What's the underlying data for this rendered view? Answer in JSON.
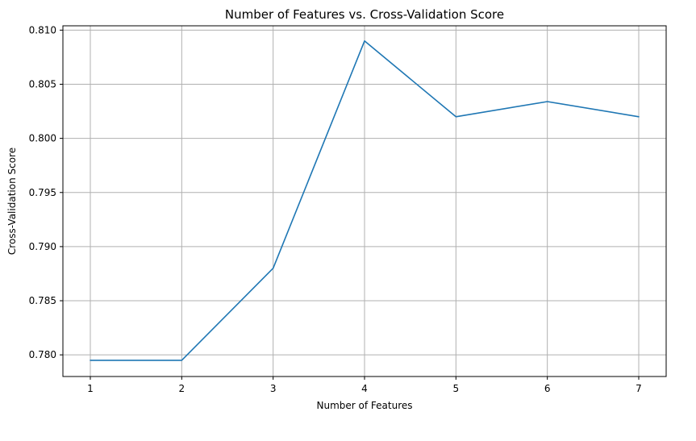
{
  "chart_data": {
    "type": "line",
    "title": "Number of Features vs. Cross-Validation Score",
    "xlabel": "Number of Features",
    "ylabel": "Cross-Validation Score",
    "x": [
      1,
      2,
      3,
      4,
      5,
      6,
      7
    ],
    "series": [
      {
        "values": [
          0.7795,
          0.7795,
          0.788,
          0.809,
          0.802,
          0.8034,
          0.802
        ],
        "color": "#1f77b4"
      }
    ],
    "xlim": [
      0.7,
      7.3
    ],
    "ylim": [
      0.778,
      0.8104
    ],
    "xticks": [
      1,
      2,
      3,
      4,
      5,
      6,
      7
    ],
    "xtick_labels": [
      "1",
      "2",
      "3",
      "4",
      "5",
      "6",
      "7"
    ],
    "yticks": [
      0.78,
      0.785,
      0.79,
      0.795,
      0.8,
      0.805,
      0.81
    ],
    "ytick_labels": [
      "0.780",
      "0.785",
      "0.790",
      "0.795",
      "0.800",
      "0.805",
      "0.810"
    ],
    "grid": true,
    "legend": "none"
  }
}
